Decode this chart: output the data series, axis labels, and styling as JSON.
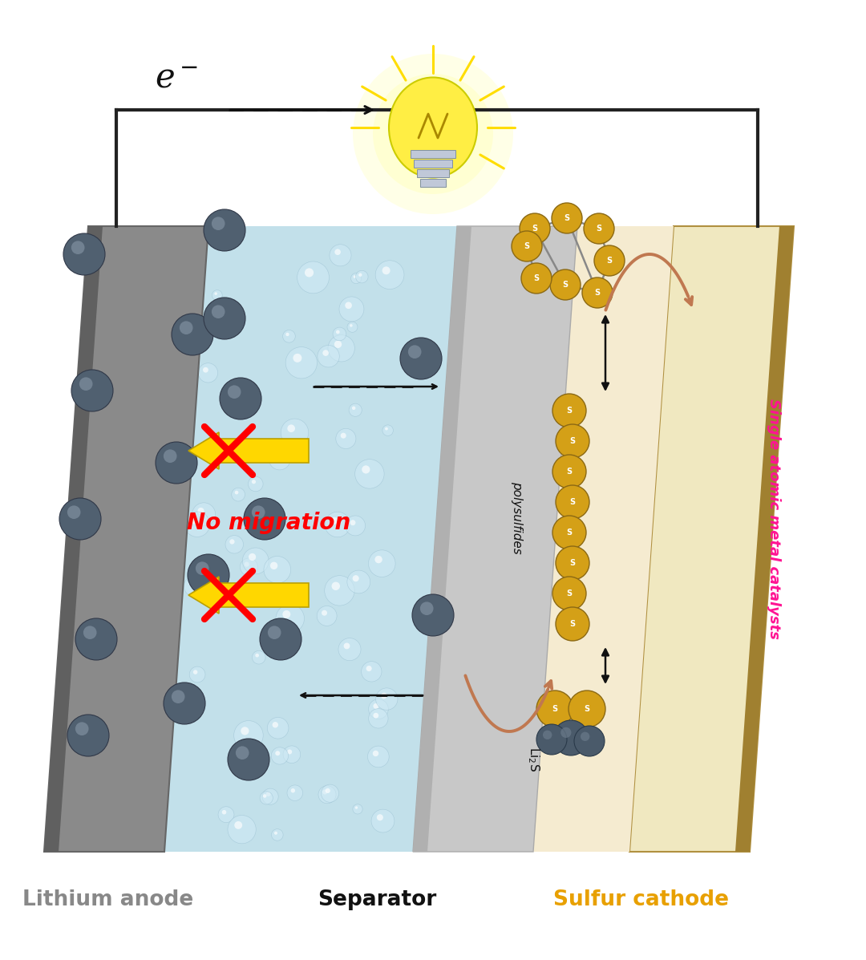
{
  "bg_color": "#ffffff",
  "label_lithium": "Lithium anode",
  "label_separator": "Separator",
  "label_sulfur": "Sulfur cathode",
  "label_lithium_color": "#888888",
  "label_separator_color": "#111111",
  "label_sulfur_color": "#E8A000",
  "label_single_atomic": "Single atomic metal catalysts",
  "label_single_atomic_color": "#FF1493",
  "label_no_migration": "No migration",
  "label_no_migration_color": "#FF0000",
  "label_polysulfides": "polysulfides",
  "label_electron": "e",
  "anode_face_color": "#8a8a8a",
  "anode_side_color": "#606060",
  "anode_top_color": "#a0a0a0",
  "sep_face_color": "#c8c8c8",
  "sep_side_color": "#a0a0a0",
  "cathode_bg_color": "#f0e8c0",
  "cathode_face_color": "#c8b060",
  "cathode_dark_color": "#a09050",
  "electrolyte_color": "#bcdde8",
  "sulfur_ball_color": "#DAA520",
  "li_ball_color": "#4a5a70",
  "arrow_color": "#C07850",
  "circuit_color": "#222222",
  "wire_lw": 3.0
}
